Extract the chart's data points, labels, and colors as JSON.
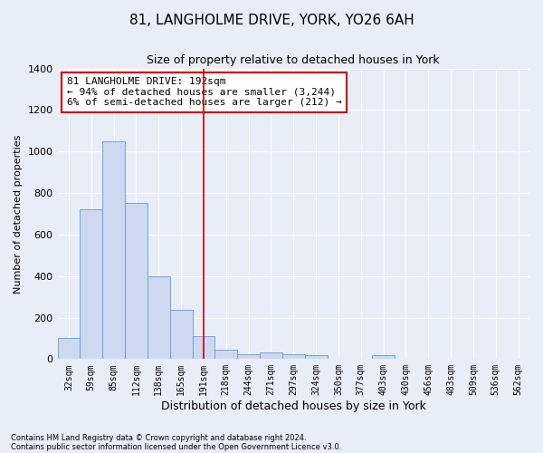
{
  "title": "81, LANGHOLME DRIVE, YORK, YO26 6AH",
  "subtitle": "Size of property relative to detached houses in York",
  "xlabel": "Distribution of detached houses by size in York",
  "ylabel": "Number of detached properties",
  "footnote1": "Contains HM Land Registry data © Crown copyright and database right 2024.",
  "footnote2": "Contains public sector information licensed under the Open Government Licence v3.0.",
  "categories": [
    "32sqm",
    "59sqm",
    "85sqm",
    "112sqm",
    "138sqm",
    "165sqm",
    "191sqm",
    "218sqm",
    "244sqm",
    "271sqm",
    "297sqm",
    "324sqm",
    "350sqm",
    "377sqm",
    "403sqm",
    "430sqm",
    "456sqm",
    "483sqm",
    "509sqm",
    "536sqm",
    "562sqm"
  ],
  "values": [
    100,
    720,
    1050,
    750,
    400,
    235,
    110,
    45,
    25,
    30,
    25,
    20,
    0,
    0,
    20,
    0,
    0,
    0,
    0,
    0,
    0
  ],
  "bar_color": "#ccd9f0",
  "bar_edge_color": "#6699cc",
  "ylim": [
    0,
    1400
  ],
  "yticks": [
    0,
    200,
    400,
    600,
    800,
    1000,
    1200,
    1400
  ],
  "vline_x_index": 6,
  "vline_color": "#cc0000",
  "annotation_line1": "81 LANGHOLME DRIVE: 192sqm",
  "annotation_line2": "← 94% of detached houses are smaller (3,244)",
  "annotation_line3": "6% of semi-detached houses are larger (212) →",
  "annotation_box_color": "#ffffff",
  "annotation_box_edge_color": "#cc0000",
  "bg_color": "#e8eef8",
  "plot_bg_color": "#e8eef8",
  "grid_color": "#ffffff",
  "title_fontsize": 11,
  "subtitle_fontsize": 9,
  "xlabel_fontsize": 9,
  "ylabel_fontsize": 8,
  "annotation_fontsize": 8,
  "tick_fontsize": 7,
  "footnote_fontsize": 6
}
